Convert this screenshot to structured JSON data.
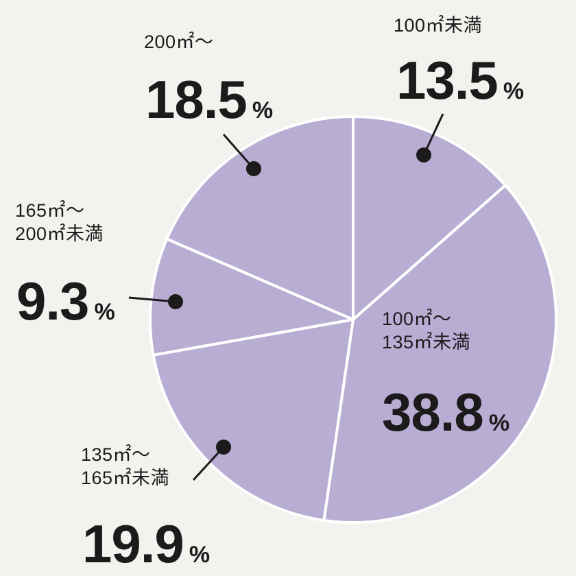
{
  "chart_data": {
    "type": "pie",
    "unit": "%",
    "slices": [
      {
        "label": "100㎡未満",
        "value": 13.5
      },
      {
        "label": "100㎡～135㎡未満",
        "label_lines": [
          "100㎡～",
          "135㎡未満"
        ],
        "value": 38.8
      },
      {
        "label": "135㎡～165㎡未満",
        "label_lines": [
          "135㎡～",
          "165㎡未満"
        ],
        "value": 19.9
      },
      {
        "label": "165㎡～200㎡未満",
        "label_lines": [
          "165㎡～",
          "200㎡未満"
        ],
        "value": 9.3
      },
      {
        "label": "200㎡～",
        "value": 18.5
      }
    ],
    "colors": {
      "slice": "#b8aed4",
      "divider": "#ffffff",
      "pointer": "#1c1a1a",
      "text": "#1c1a1a",
      "background": "#f3f2ee"
    }
  }
}
